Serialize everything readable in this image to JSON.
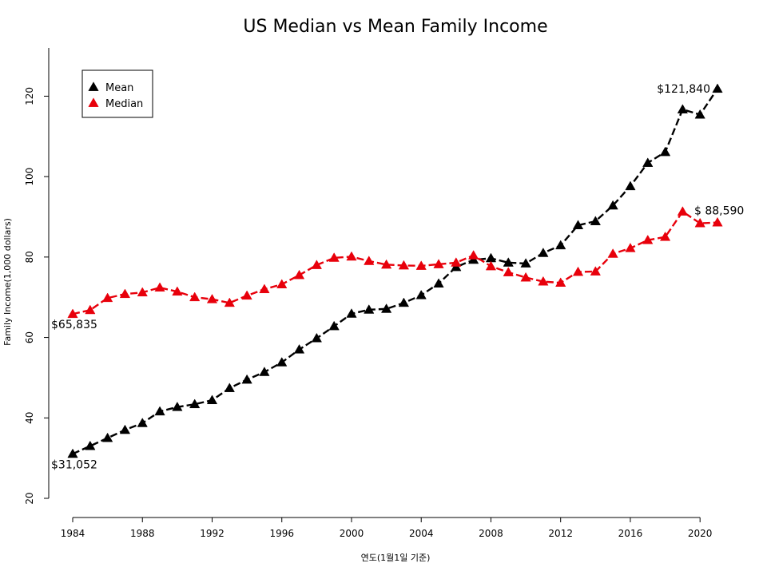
{
  "chart_data": {
    "type": "line",
    "title": "US Median vs Mean Family Income",
    "xlabel": "연도(1월1일 기준)",
    "ylabel": "Family Income(1,000 dollars)",
    "xlim": [
      1984,
      2021
    ],
    "ylim": [
      20,
      132
    ],
    "x_ticks": [
      1984,
      1988,
      1992,
      1996,
      2000,
      2004,
      2008,
      2012,
      2016,
      2020
    ],
    "y_ticks": [
      20,
      40,
      60,
      80,
      100,
      120
    ],
    "grid": false,
    "legend_position": "top-left",
    "x": [
      1984,
      1985,
      1986,
      1987,
      1988,
      1989,
      1990,
      1991,
      1992,
      1993,
      1994,
      1995,
      1996,
      1997,
      1998,
      1999,
      2000,
      2001,
      2002,
      2003,
      2004,
      2005,
      2006,
      2007,
      2008,
      2009,
      2010,
      2011,
      2012,
      2013,
      2014,
      2015,
      2016,
      2017,
      2018,
      2019,
      2020,
      2021
    ],
    "series": [
      {
        "name": "Mean",
        "color": "#000000",
        "values": [
          31.052,
          33.0,
          35.0,
          37.0,
          38.7,
          41.6,
          42.7,
          43.4,
          44.4,
          47.4,
          49.5,
          51.4,
          53.8,
          57.0,
          59.8,
          62.8,
          65.9,
          66.9,
          67.1,
          68.6,
          70.5,
          73.4,
          77.5,
          79.3,
          79.7,
          78.6,
          78.4,
          81.0,
          82.9,
          87.9,
          88.9,
          92.8,
          97.6,
          103.4,
          106.1,
          116.7,
          115.4,
          121.84
        ]
      },
      {
        "name": "Median",
        "color": "#e8000b",
        "values": [
          65.835,
          66.8,
          69.8,
          70.8,
          71.2,
          72.4,
          71.4,
          70.0,
          69.5,
          68.6,
          70.4,
          72.0,
          73.2,
          75.5,
          78.0,
          79.8,
          80.1,
          79.0,
          78.1,
          77.9,
          77.8,
          78.2,
          78.6,
          80.4,
          77.7,
          76.2,
          74.9,
          73.9,
          73.6,
          76.3,
          76.4,
          80.8,
          82.2,
          84.2,
          85.0,
          91.3,
          88.4,
          88.59
        ]
      }
    ],
    "annotations": [
      {
        "series": "Median",
        "x": 1984,
        "text": "$65,835"
      },
      {
        "series": "Mean",
        "x": 1984,
        "text": "$31,052"
      },
      {
        "series": "Mean",
        "x": 2021,
        "text": "$121,840"
      },
      {
        "series": "Median",
        "x": 2021,
        "text": "$ 88,590"
      }
    ]
  }
}
